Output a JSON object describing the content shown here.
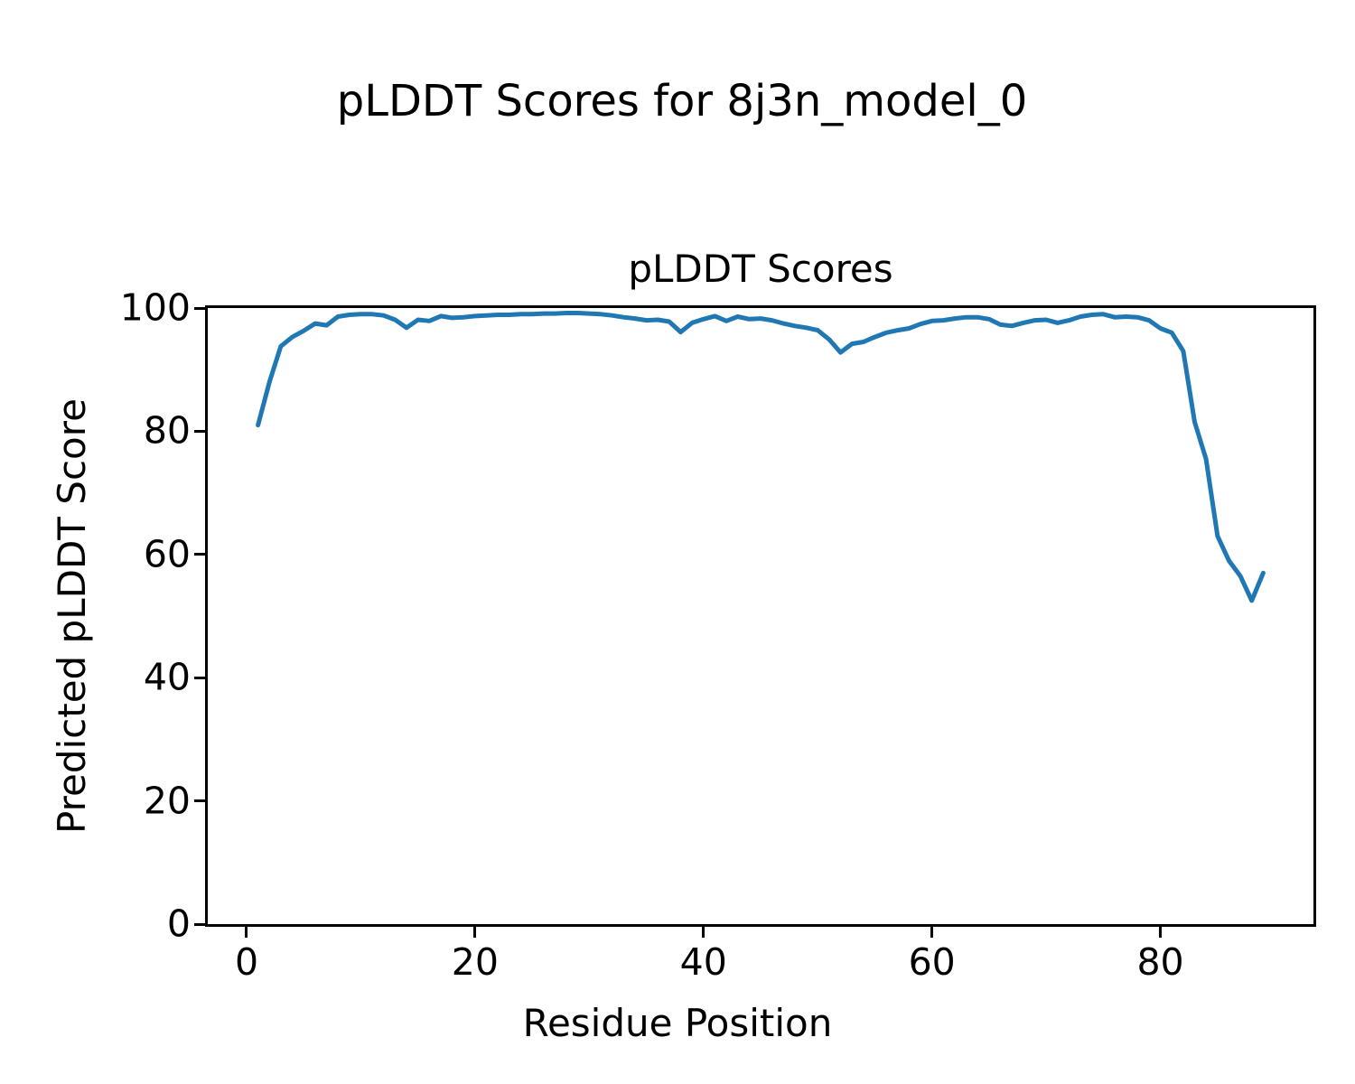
{
  "figure": {
    "suptitle": "pLDDT Scores for 8j3n_model_0",
    "background_color": "#ffffff",
    "text_color": "#000000"
  },
  "chart_data": {
    "type": "line",
    "title": "pLDDT Scores",
    "xlabel": "Residue Position",
    "ylabel": "Predicted pLDDT Score",
    "xlim": [
      -3.4,
      93.4
    ],
    "ylim": [
      0,
      100
    ],
    "xticks": [
      0,
      20,
      40,
      60,
      80
    ],
    "yticks": [
      0,
      20,
      40,
      60,
      80,
      100
    ],
    "grid": false,
    "legend_position": "none",
    "line_color": "#1f77b4",
    "line_width": 5,
    "axis_color": "#000000",
    "series": [
      {
        "name": "pLDDT",
        "x": [
          1,
          2,
          3,
          4,
          5,
          6,
          7,
          8,
          9,
          10,
          11,
          12,
          13,
          14,
          15,
          16,
          17,
          18,
          19,
          20,
          21,
          22,
          23,
          24,
          25,
          26,
          27,
          28,
          29,
          30,
          31,
          32,
          33,
          34,
          35,
          36,
          37,
          38,
          39,
          40,
          41,
          42,
          43,
          44,
          45,
          46,
          47,
          48,
          49,
          50,
          51,
          52,
          53,
          54,
          55,
          56,
          57,
          58,
          59,
          60,
          61,
          62,
          63,
          64,
          65,
          66,
          67,
          68,
          69,
          70,
          71,
          72,
          73,
          74,
          75,
          76,
          77,
          78,
          79,
          80,
          81,
          82,
          83,
          84,
          85,
          86,
          87,
          88,
          89
        ],
        "values": [
          81.0,
          88.0,
          93.8,
          95.3,
          96.3,
          97.5,
          97.2,
          98.6,
          98.9,
          99.0,
          99.0,
          98.8,
          98.1,
          96.8,
          98.1,
          97.9,
          98.7,
          98.4,
          98.5,
          98.7,
          98.8,
          98.9,
          98.9,
          99.0,
          99.0,
          99.1,
          99.1,
          99.2,
          99.2,
          99.1,
          99.0,
          98.8,
          98.5,
          98.3,
          98.0,
          98.1,
          97.8,
          96.1,
          97.6,
          98.2,
          98.7,
          97.9,
          98.6,
          98.2,
          98.3,
          98.0,
          97.5,
          97.1,
          96.8,
          96.4,
          94.9,
          92.8,
          94.2,
          94.5,
          95.3,
          96.0,
          96.4,
          96.7,
          97.4,
          97.9,
          98.0,
          98.3,
          98.5,
          98.5,
          98.2,
          97.3,
          97.1,
          97.6,
          98.0,
          98.1,
          97.6,
          98.0,
          98.6,
          98.9,
          99.0,
          98.5,
          98.6,
          98.5,
          98.0,
          96.7,
          96.0,
          93.0,
          81.5,
          75.5,
          63.0,
          59.0,
          56.5,
          52.5,
          57.0
        ]
      }
    ]
  }
}
